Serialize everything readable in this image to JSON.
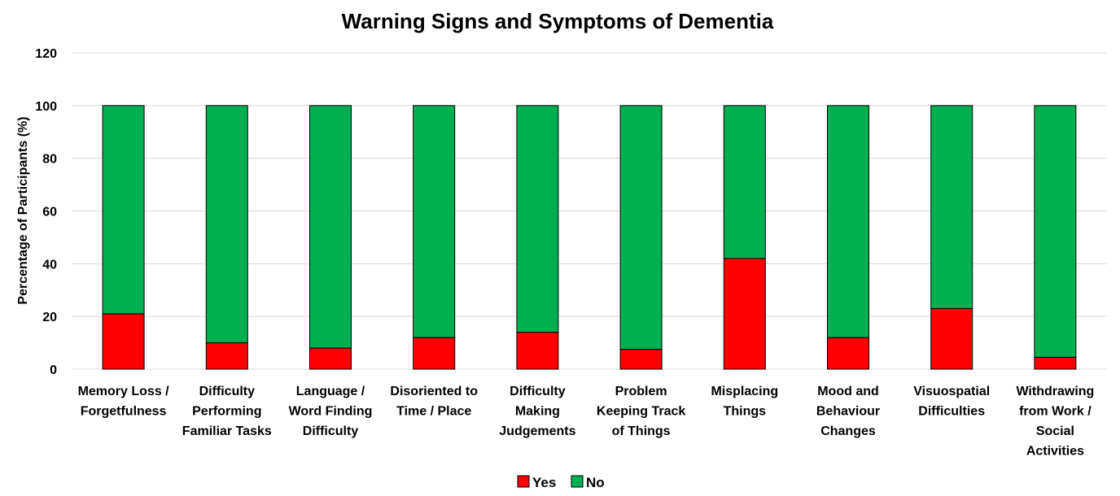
{
  "chart_data": {
    "type": "bar",
    "stacked": true,
    "title": "Warning Signs and Symptoms of Dementia",
    "xlabel": "",
    "ylabel": "Percentage of Participants (%)",
    "ylim": [
      0,
      120
    ],
    "yticks": [
      0,
      20,
      40,
      60,
      80,
      100,
      120
    ],
    "grid": true,
    "legend_position": "bottom",
    "categories": [
      [
        "Memory Loss /",
        "Forgetfulness"
      ],
      [
        "Difficulty",
        "Performing",
        "Familiar Tasks"
      ],
      [
        "Language /",
        "Word Finding",
        "Difficulty"
      ],
      [
        "Disoriented to",
        "Time / Place"
      ],
      [
        "Difficulty",
        "Making",
        "Judgements"
      ],
      [
        "Problem",
        "Keeping Track",
        "of Things"
      ],
      [
        "Misplacing",
        "Things"
      ],
      [
        "Mood and",
        "Behaviour",
        "Changes"
      ],
      [
        "Visuospatial",
        "Difficulties"
      ],
      [
        "Withdrawing",
        "from Work /",
        "Social",
        "Activities"
      ]
    ],
    "series": [
      {
        "name": "Yes",
        "color": "#ff0000",
        "values": [
          21,
          10,
          8,
          12,
          14,
          7.5,
          42,
          12,
          23,
          4.5
        ]
      },
      {
        "name": "No",
        "color": "#00b050",
        "values": [
          79,
          90,
          92,
          88,
          86,
          92.5,
          58,
          88,
          77,
          95.5
        ]
      }
    ]
  }
}
